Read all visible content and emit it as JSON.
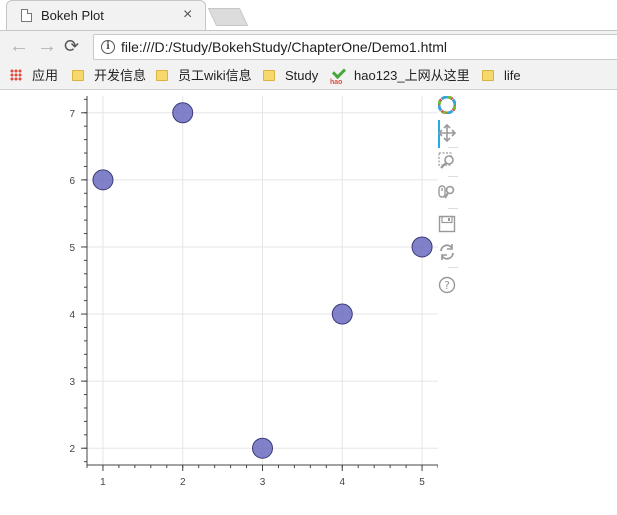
{
  "tab": {
    "title": "Bokeh Plot",
    "close_glyph": "×",
    "favicon": "page-icon"
  },
  "nav": {
    "back_glyph": "←",
    "forward_glyph": "→",
    "reload_glyph": "⟳"
  },
  "address": {
    "url": "file:///D:/Study/BokehStudy/ChapterOne/Demo1.html",
    "info_glyph": "i"
  },
  "bookmarks": [
    {
      "label": "应用",
      "icon": "apps-icon"
    },
    {
      "label": "开发信息",
      "icon": "folder-icon"
    },
    {
      "label": "员工wiki信息",
      "icon": "folder-icon"
    },
    {
      "label": "Study",
      "icon": "folder-icon"
    },
    {
      "label": "hao123_上网从这里",
      "icon": "hao123-icon"
    },
    {
      "label": "life",
      "icon": "folder-icon"
    }
  ],
  "plot_tools": [
    {
      "name": "bokeh-logo-icon"
    },
    {
      "name": "pan-tool-icon",
      "active": true
    },
    {
      "name": "box-zoom-tool-icon"
    },
    {
      "name": "wheel-zoom-tool-icon"
    },
    {
      "name": "save-tool-icon"
    },
    {
      "name": "reset-tool-icon"
    },
    {
      "name": "help-tool-icon"
    }
  ],
  "chart_data": {
    "type": "scatter",
    "title": "",
    "xlabel": "",
    "ylabel": "",
    "x": [
      1,
      2,
      3,
      4,
      5
    ],
    "y": [
      6,
      7,
      2,
      4,
      5
    ],
    "xlim": [
      0.8,
      5.2
    ],
    "ylim": [
      1.75,
      7.25
    ],
    "x_ticks": [
      1,
      2,
      3,
      4,
      5
    ],
    "y_ticks": [
      2,
      3,
      4,
      5,
      6,
      7
    ],
    "grid": true,
    "marker": "circle",
    "marker_color": "#6b6bbf",
    "marker_edge_color": "#3a3a7a",
    "marker_alpha": 0.85
  },
  "colors": {
    "tab_bg": "#f2f2f2",
    "toolbar_bg": "#f2f2f2",
    "grid": "#e5e5e5",
    "axis": "#444444",
    "active_tool": "#26aae1"
  }
}
